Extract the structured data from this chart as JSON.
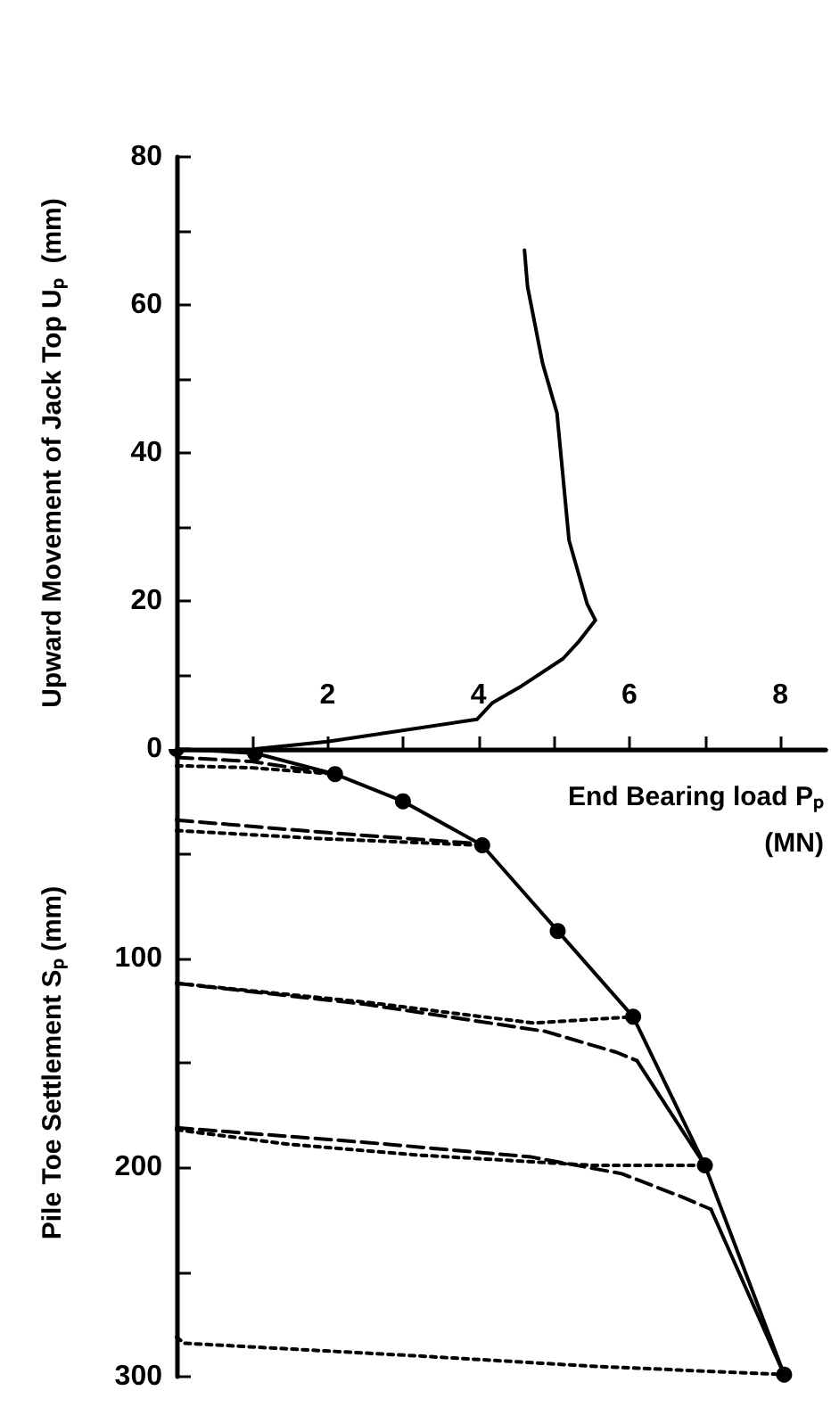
{
  "chart_data": [
    {
      "type": "line",
      "ylabel": "Upward Movement of Jack Top Uₚ  (mm)",
      "xlim": [
        0,
        8.6
      ],
      "xticks": [
        {
          "value": 1,
          "label": null
        },
        2,
        {
          "value": 3,
          "label": null
        },
        4,
        {
          "value": 5,
          "label": null
        },
        6,
        {
          "value": 7,
          "label": null
        },
        8
      ],
      "ylim": [
        0,
        80
      ],
      "yticks": [
        0,
        {
          "value": 10,
          "label": null
        },
        20,
        {
          "value": 30,
          "label": null
        },
        40,
        {
          "value": 50,
          "label": null
        },
        60,
        {
          "value": 70,
          "label": null
        },
        80
      ],
      "grid": false,
      "series": [
        {
          "color": "#000000",
          "marker": "none",
          "line_style": "solid",
          "x": [
            1.04,
            2.0,
            3.98,
            4.18,
            4.57,
            5.12,
            5.32,
            5.55,
            5.44,
            5.2,
            5.04,
            4.85,
            4.65,
            4.61
          ],
          "values": [
            0,
            1,
            4,
            6.2,
            8.5,
            12.2,
            14.4,
            17.4,
            19.6,
            28.2,
            45.4,
            52.1,
            62.5,
            67.4
          ]
        }
      ]
    },
    {
      "type": "line",
      "xlabel": "End Bearing load Pₚ\n(MN)",
      "ylabel": "Pile Toe Settlement Sₚ (mm)",
      "xlim": [
        0,
        8.6
      ],
      "xticks": [
        1,
        2,
        3,
        4,
        5,
        6,
        7,
        8
      ],
      "ylim": [
        300,
        0
      ],
      "yticks": [
        {
          "value": 0,
          "label": null
        },
        {
          "value": 50,
          "label": null
        },
        100,
        {
          "value": 150,
          "label": null
        },
        200,
        {
          "value": 250,
          "label": null
        },
        300
      ],
      "tick_labels": "y",
      "grid": false,
      "series": [
        {
          "color": "#000000",
          "marker": "circle",
          "line_style": "solid",
          "x": [
            0,
            1.04,
            2.1,
            3.0,
            4.05,
            5.05,
            6.05,
            7.0,
            8.05
          ],
          "values": [
            0,
            2,
            12,
            25,
            46,
            87,
            128,
            199,
            299
          ]
        },
        {
          "color": "#000000",
          "marker": "none",
          "line_style": "dotted",
          "x": [
            0,
            1.0,
            2.1
          ],
          "values": [
            8,
            9,
            12
          ]
        },
        {
          "color": "#000000",
          "marker": "none",
          "line_style": "dashed",
          "x": [
            0,
            1.0,
            2.1
          ],
          "values": [
            4,
            6,
            12
          ]
        },
        {
          "color": "#000000",
          "marker": "none",
          "line_style": "dotted",
          "x": [
            0,
            2.0,
            4.05
          ],
          "values": [
            39,
            43,
            46
          ]
        },
        {
          "color": "#000000",
          "marker": "none",
          "line_style": "dashed",
          "x": [
            0,
            2.0,
            3.9,
            4.05
          ],
          "values": [
            34,
            40,
            45,
            46
          ]
        },
        {
          "color": "#000000",
          "marker": "none",
          "line_style": "dotted",
          "x": [
            0,
            2.5,
            4.73,
            6.05
          ],
          "values": [
            112,
            121,
            131,
            128
          ]
        },
        {
          "color": "#000000",
          "marker": "none",
          "line_style": "dashed",
          "x": [
            0,
            2.5,
            4.89,
            5.83,
            6.1
          ],
          "values": [
            112,
            122,
            135,
            145,
            149
          ]
        },
        {
          "color": "#000000",
          "marker": "none",
          "line_style": "solid",
          "x": [
            6.1,
            7.0
          ],
          "values": [
            149,
            199
          ]
        },
        {
          "color": "#000000",
          "marker": "none",
          "line_style": "dotted",
          "x": [
            0,
            1.5,
            3.16,
            5.51,
            7.0
          ],
          "values": [
            182,
            189,
            194,
            199,
            199
          ]
        },
        {
          "color": "#000000",
          "marker": "none",
          "line_style": "dashed",
          "x": [
            0,
            2.5,
            4.7,
            5.9,
            6.69,
            7.08
          ],
          "values": [
            181,
            188,
            195,
            203,
            214,
            220
          ]
        },
        {
          "color": "#000000",
          "marker": "none",
          "line_style": "solid",
          "x": [
            7.08,
            8.05
          ],
          "values": [
            220,
            299
          ]
        },
        {
          "color": "#000000",
          "marker": "none",
          "line_style": "dotted",
          "x": [
            0,
            0.1,
            3.16,
            5.51,
            8.05
          ],
          "values": [
            281,
            284,
            290,
            295,
            299
          ]
        }
      ]
    }
  ]
}
